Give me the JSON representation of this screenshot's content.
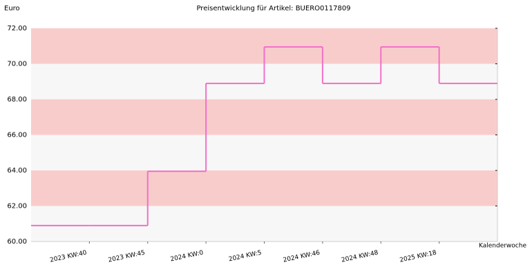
{
  "chart_data": {
    "type": "step",
    "title": "Preisentwicklung für Artikel: BUERO0117809",
    "y_label": "Euro",
    "x_label": "Kalenderwoche",
    "categories": [
      null,
      "2023 KW:40",
      "2023 KW:45",
      "2024 KW:0",
      "2024 KW:5",
      "2024 KW:46",
      "2024 KW:48",
      "2025 KW:18"
    ],
    "values": [
      60.9,
      60.9,
      63.95,
      68.9,
      70.95,
      68.9,
      70.95,
      68.9
    ],
    "color": "#f070c8",
    "ylim": [
      60,
      72
    ],
    "yticks": [
      {
        "value": 60,
        "label": "60.00"
      },
      {
        "value": 62,
        "label": "62.00"
      },
      {
        "value": 64,
        "label": "64.00"
      },
      {
        "value": 66,
        "label": "66.00"
      },
      {
        "value": 68,
        "label": "68.00"
      },
      {
        "value": 70,
        "label": "70.00"
      },
      {
        "value": 72,
        "label": "72.00"
      }
    ],
    "band_colors": [
      "#f7f7f7",
      "#f9cccc"
    ]
  }
}
